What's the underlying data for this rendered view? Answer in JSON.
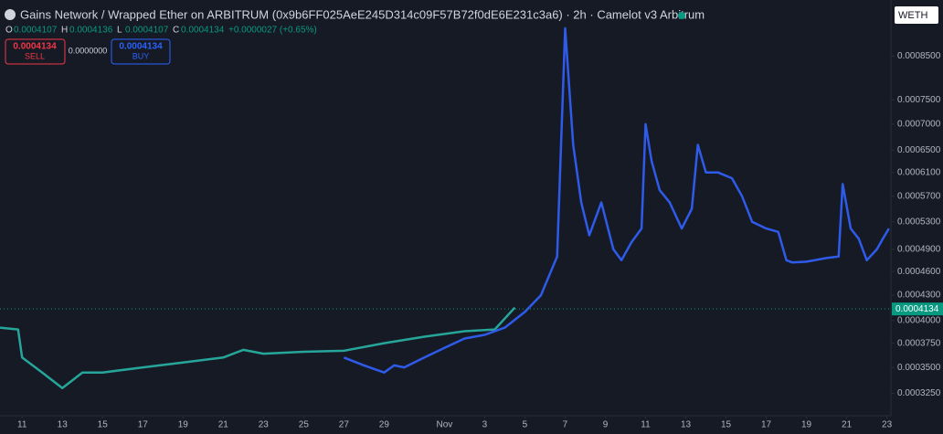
{
  "header": {
    "title": "Gains Network / Wrapped Ether on ARBITRUM (0x9b6FF025AeE245D314c09F57B72f0dE6E231c3a6) · 2h · Camelot v3 Arbitrum",
    "ohlc": [
      [
        "O",
        "0.0004107"
      ],
      [
        "H",
        "0.0004136"
      ],
      [
        "L",
        "0.0004107"
      ],
      [
        "C",
        "0.0004134"
      ]
    ],
    "change": "+0.0000027 (+0.65%)",
    "sell": {
      "price": "0.0004134",
      "label": "SELL"
    },
    "spread": "0.0000000",
    "buy": {
      "price": "0.0004134",
      "label": "BUY"
    },
    "currency": "WETH"
  },
  "chart_data": {
    "type": "line",
    "log_scale": true,
    "last_price": 0.0004134,
    "ylim": [
      0.000305,
      0.000997
    ],
    "yticks": [
      {
        "value": 0.00085,
        "label": "0.0008500"
      },
      {
        "value": 0.00075,
        "label": "0.0007500"
      },
      {
        "value": 0.0007,
        "label": "0.0007000"
      },
      {
        "value": 0.00065,
        "label": "0.0006500"
      },
      {
        "value": 0.00061,
        "label": "0.0006100"
      },
      {
        "value": 0.00057,
        "label": "0.0005700"
      },
      {
        "value": 0.00053,
        "label": "0.0005300"
      },
      {
        "value": 0.00049,
        "label": "0.0004900"
      },
      {
        "value": 0.00046,
        "label": "0.0004600"
      },
      {
        "value": 0.00043,
        "label": "0.0004300"
      },
      {
        "value": 0.0004,
        "label": "0.0004000"
      },
      {
        "value": 0.000375,
        "label": "0.0003750"
      },
      {
        "value": 0.00035,
        "label": "0.0003500"
      },
      {
        "value": 0.000325,
        "label": "0.0003250"
      }
    ],
    "xlim": [
      -1.1,
      43.2
    ],
    "xticks": [
      {
        "value": 0,
        "label": "11"
      },
      {
        "value": 2,
        "label": "13"
      },
      {
        "value": 4,
        "label": "15"
      },
      {
        "value": 6,
        "label": "17"
      },
      {
        "value": 8,
        "label": "19"
      },
      {
        "value": 10,
        "label": "21"
      },
      {
        "value": 12,
        "label": "23"
      },
      {
        "value": 14,
        "label": "25"
      },
      {
        "value": 16,
        "label": "27"
      },
      {
        "value": 18,
        "label": "29"
      },
      {
        "value": 21,
        "label": "Nov"
      },
      {
        "value": 23,
        "label": "3"
      },
      {
        "value": 25,
        "label": "5"
      },
      {
        "value": 27,
        "label": "7"
      },
      {
        "value": 29,
        "label": "9"
      },
      {
        "value": 31,
        "label": "11"
      },
      {
        "value": 33,
        "label": "13"
      },
      {
        "value": 35,
        "label": "15"
      },
      {
        "value": 37,
        "label": "17"
      },
      {
        "value": 39,
        "label": "19"
      },
      {
        "value": 41,
        "label": "21"
      },
      {
        "value": 43,
        "label": "23"
      }
    ],
    "series": [
      {
        "color": "#26a69a",
        "x": [
          -1.1,
          -0.2,
          0,
          1,
          2,
          3,
          4,
          6,
          8,
          10,
          11,
          12,
          14,
          16,
          18,
          20,
          22,
          23.5,
          24.5
        ],
        "values": [
          0.000392,
          0.00039,
          0.00036,
          0.000345,
          0.00033,
          0.000345,
          0.000345,
          0.00035,
          0.000355,
          0.00036,
          0.000368,
          0.000364,
          0.000366,
          0.000367,
          0.000375,
          0.000382,
          0.000388,
          0.00039,
          0.000415
        ]
      },
      {
        "color": "#2f5bea",
        "x": [
          16,
          17,
          18,
          18.5,
          19,
          20,
          21,
          22,
          23,
          24,
          25,
          25.8,
          26.6,
          27,
          27.4,
          27.8,
          28.2,
          28.8,
          29.4,
          29.8,
          30.3,
          30.8,
          31,
          31.3,
          31.7,
          32.2,
          32.8,
          33.3,
          33.6,
          34,
          34.6,
          35.3,
          35.8,
          36.3,
          37,
          37.6,
          38,
          38.3,
          39,
          40,
          40.6,
          40.8,
          41.2,
          41.6,
          42,
          42.5,
          42.8,
          43.1
        ],
        "values": [
          0.00036,
          0.000352,
          0.000345,
          0.000352,
          0.00035,
          0.00036,
          0.00037,
          0.00038,
          0.000384,
          0.000392,
          0.00041,
          0.00043,
          0.00048,
          0.00092,
          0.00066,
          0.00056,
          0.00051,
          0.00056,
          0.00049,
          0.000475,
          0.0005,
          0.00052,
          0.0007,
          0.00063,
          0.00058,
          0.00056,
          0.00052,
          0.00055,
          0.00066,
          0.00061,
          0.00061,
          0.0006,
          0.00057,
          0.00053,
          0.00052,
          0.000515,
          0.000475,
          0.000472,
          0.000473,
          0.000478,
          0.00048,
          0.00059,
          0.00052,
          0.000505,
          0.000475,
          0.00049,
          0.000505,
          0.00052
        ]
      }
    ]
  }
}
